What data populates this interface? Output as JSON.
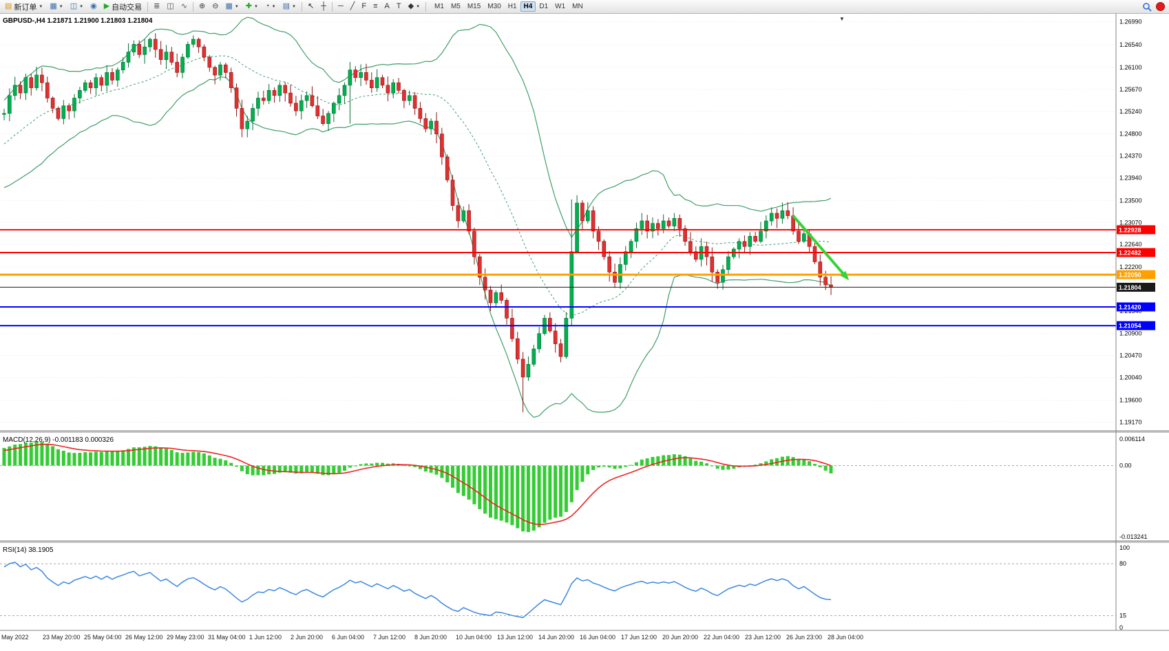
{
  "toolbar": {
    "caret_glyph": "▼",
    "items": [
      {
        "name": "new-order-button",
        "icon": "new-order-icon",
        "glyph": "▤",
        "glyph_color": "#d89010",
        "label": "新订单",
        "caret": true
      },
      {
        "name": "charts-window-button",
        "icon": "chart-window-icon",
        "glyph": "▦",
        "glyph_color": "#3a6ea5",
        "caret": true
      },
      {
        "name": "profiles-button",
        "icon": "profiles-icon",
        "glyph": "◫",
        "glyph_color": "#3a6ea5",
        "caret": true
      },
      {
        "name": "alerts-button",
        "icon": "bell-icon",
        "glyph": "◉",
        "glyph_color": "#3a6ea5"
      },
      {
        "name": "autotrading-button",
        "icon": "play-icon",
        "glyph": "▶",
        "glyph_color": "#1faa1f",
        "label": "自动交易"
      },
      {
        "name": "sep"
      },
      {
        "name": "bar-chart-button",
        "icon": "bar-chart-icon",
        "glyph": "≣",
        "glyph_color": "#555555"
      },
      {
        "name": "candlestick-chart-button",
        "icon": "candlestick-icon",
        "glyph": "◫",
        "glyph_color": "#555555"
      },
      {
        "name": "line-chart-button",
        "icon": "line-chart-icon",
        "glyph": "∿",
        "glyph_color": "#555555"
      },
      {
        "name": "sep"
      },
      {
        "name": "zoom-in-button",
        "icon": "zoom-in-icon",
        "glyph": "⊕",
        "glyph_color": "#444444"
      },
      {
        "name": "zoom-out-button",
        "icon": "zoom-out-icon",
        "glyph": "⊖",
        "glyph_color": "#444444"
      },
      {
        "name": "tile-windows-button",
        "icon": "tile-windows-icon",
        "glyph": "▦",
        "glyph_color": "#3a6ea5",
        "caret": true
      },
      {
        "name": "indicators-button",
        "icon": "indicator-plus-icon",
        "glyph": "✚",
        "glyph_color": "#1faa1f",
        "caret": true
      },
      {
        "name": "periods-button",
        "icon": "clock-icon",
        "glyph": "◔",
        "glyph_color": "#444444",
        "caret": true
      },
      {
        "name": "templates-button",
        "icon": "template-icon",
        "glyph": "▤",
        "glyph_color": "#3a6ea5",
        "caret": true
      },
      {
        "name": "sep"
      },
      {
        "name": "cursor-button",
        "icon": "cursor-icon",
        "glyph": "↖",
        "glyph_color": "#222222"
      },
      {
        "name": "crosshair-button",
        "icon": "crosshair-icon",
        "glyph": "┼",
        "glyph_color": "#222222"
      },
      {
        "name": "sep"
      },
      {
        "name": "horizontal-line-button",
        "icon": "horizontal-line-icon",
        "glyph": "─",
        "glyph_color": "#333333"
      },
      {
        "name": "trendline-button",
        "icon": "trendline-icon",
        "glyph": "╱",
        "glyph_color": "#333333"
      },
      {
        "name": "fibonacci-button",
        "icon": "fibonacci-icon",
        "glyph": "F",
        "glyph_color": "#333333"
      },
      {
        "name": "channel-button",
        "icon": "channel-icon",
        "glyph": "≡",
        "glyph_color": "#333333"
      },
      {
        "name": "text-button",
        "icon": "text-icon",
        "glyph": "A",
        "glyph_color": "#333333"
      },
      {
        "name": "text-label-button",
        "icon": "text-label-icon",
        "glyph": "T",
        "glyph_color": "#333333"
      },
      {
        "name": "arrows-button",
        "icon": "arrow-objects-icon",
        "glyph": "◆",
        "glyph_color": "#333333",
        "caret": true
      },
      {
        "name": "sep"
      }
    ],
    "timeframes": {
      "items": [
        "M1",
        "M5",
        "M15",
        "M30",
        "H1",
        "H4",
        "D1",
        "W1",
        "MN"
      ],
      "active": "H4"
    }
  },
  "chart": {
    "symbol_period": "GBPUSD-,H4",
    "open": "1.21871",
    "high": "1.21900",
    "low": "1.21803",
    "close": "1.21804"
  },
  "chart_data": {
    "type": "candlestick",
    "symbol": "GBPUSD-",
    "timeframe": "H4",
    "ylim": [
      1.19,
      1.2712
    ],
    "colors": {
      "up": "#00B050",
      "up_stroke": "#006F30",
      "down": "#E03030",
      "down_stroke": "#8F1212",
      "grid": "#DDDDDD",
      "dashed": "#A6A6A6"
    },
    "bollinger": {
      "period": 20,
      "dev": 2,
      "color": "#3E9E68"
    },
    "pre_closes": [
      1.2378,
      1.2392,
      1.2385,
      1.241,
      1.2402,
      1.2428,
      1.242,
      1.2445,
      1.2438,
      1.246,
      1.2452,
      1.2475,
      1.2468,
      1.249,
      1.2482,
      1.2505,
      1.2498,
      1.2512,
      1.2506,
      1.2518
    ],
    "closes": [
      1.252,
      1.2555,
      1.2575,
      1.256,
      1.259,
      1.257,
      1.2595,
      1.258,
      1.255,
      1.253,
      1.251,
      1.2535,
      1.2525,
      1.255,
      1.2565,
      1.258,
      1.257,
      1.259,
      1.2575,
      1.26,
      1.2585,
      1.2605,
      1.262,
      1.264,
      1.2655,
      1.2635,
      1.265,
      1.2665,
      1.2645,
      1.2625,
      1.264,
      1.262,
      1.26,
      1.263,
      1.2655,
      1.2665,
      1.265,
      1.263,
      1.261,
      1.2595,
      1.2615,
      1.26,
      1.257,
      1.253,
      1.249,
      1.2505,
      1.253,
      1.255,
      1.2545,
      1.2565,
      1.2555,
      1.2575,
      1.256,
      1.254,
      1.2525,
      1.2545,
      1.2555,
      1.2535,
      1.2515,
      1.25,
      1.252,
      1.254,
      1.2555,
      1.2575,
      1.2605,
      1.259,
      1.26,
      1.2585,
      1.257,
      1.259,
      1.2575,
      1.256,
      1.258,
      1.2565,
      1.2545,
      1.2555,
      1.253,
      1.251,
      1.249,
      1.2505,
      1.248,
      1.2435,
      1.239,
      1.234,
      1.231,
      1.233,
      1.229,
      1.224,
      1.22,
      1.2175,
      1.215,
      1.217,
      1.2155,
      1.212,
      1.208,
      1.204,
      1.2005,
      1.203,
      1.206,
      1.209,
      1.212,
      1.2095,
      1.207,
      1.2045,
      1.212,
      1.225,
      1.2345,
      1.231,
      1.233,
      1.229,
      1.227,
      1.224,
      1.221,
      1.219,
      1.2225,
      1.225,
      1.227,
      1.2295,
      1.231,
      1.229,
      1.2305,
      1.2295,
      1.231,
      1.23,
      1.2315,
      1.2295,
      1.227,
      1.225,
      1.2235,
      1.226,
      1.224,
      1.221,
      1.219,
      1.2215,
      1.224,
      1.2255,
      1.227,
      1.226,
      1.228,
      1.227,
      1.229,
      1.231,
      1.2325,
      1.2315,
      1.233,
      1.232,
      1.229,
      1.227,
      1.2285,
      1.226,
      1.223,
      1.22,
      1.2185,
      1.21804
    ],
    "wick_overrides": {
      "27": {
        "high": 1.2668
      },
      "64": {
        "low": 1.25
      },
      "96": {
        "low": 1.1936
      },
      "105": {
        "high": 1.2352
      }
    },
    "levels": [
      {
        "label": "1.22928",
        "price": 1.22928,
        "color": "#FF0000",
        "width": 2
      },
      {
        "label": "1.22482",
        "price": 1.22482,
        "color": "#FF0000",
        "width": 2
      },
      {
        "label": "1.22050",
        "price": 1.2205,
        "color": "#FFA000",
        "width": 3
      },
      {
        "label": "1.21804",
        "price": 1.21804,
        "color": "#1A1A1A",
        "width": 1
      },
      {
        "label": "1.21420",
        "price": 1.2142,
        "color": "#0000FF",
        "width": 2
      },
      {
        "label": "1.21054",
        "price": 1.21054,
        "color": "#0000FF",
        "width": 2
      }
    ],
    "trend_arrow": {
      "i1": 146,
      "p1": 1.232,
      "i2": 156,
      "p2": 1.2198,
      "color": "#35D435",
      "width": 4
    },
    "price_axis_labels": [
      "1.26990",
      "1.26540",
      "1.26100",
      "1.25670",
      "1.25240",
      "1.24800",
      "1.24370",
      "1.23940",
      "1.23500",
      "1.23070",
      "1.22640",
      "1.22200",
      "1.21340",
      "1.20900",
      "1.20470",
      "1.20040",
      "1.19600",
      "1.19170"
    ],
    "macd": {
      "label": "MACD(12,26,9)",
      "value_main": "-0.001183",
      "value_signal": "0.000326",
      "axis": [
        "0.006114",
        "0.00",
        "-0.013241"
      ],
      "hist_color": "#33CC33",
      "signal_color": "#EE2222"
    },
    "rsi": {
      "label": "RSI(14)",
      "value": "38.1905",
      "axis_top": "100",
      "axis_bottom": "0",
      "levels": [
        80,
        15
      ],
      "color": "#3A87E0"
    },
    "time_axis": [
      "May 2022",
      "23 May 20:00",
      "25 May 04:00",
      "26 May 12:00",
      "29 May 23:00",
      "31 May 04:00",
      "1 Jun 12:00",
      "2 Jun 20:00",
      "6 Jun 04:00",
      "7 Jun 12:00",
      "8 Jun 20:00",
      "10 Jun 04:00",
      "13 Jun 12:00",
      "14 Jun 20:00",
      "16 Jun 04:00",
      "17 Jun 12:00",
      "20 Jun 20:00",
      "22 Jun 04:00",
      "23 Jun 12:00",
      "26 Jun 23:00",
      "28 Jun 04:00"
    ]
  }
}
